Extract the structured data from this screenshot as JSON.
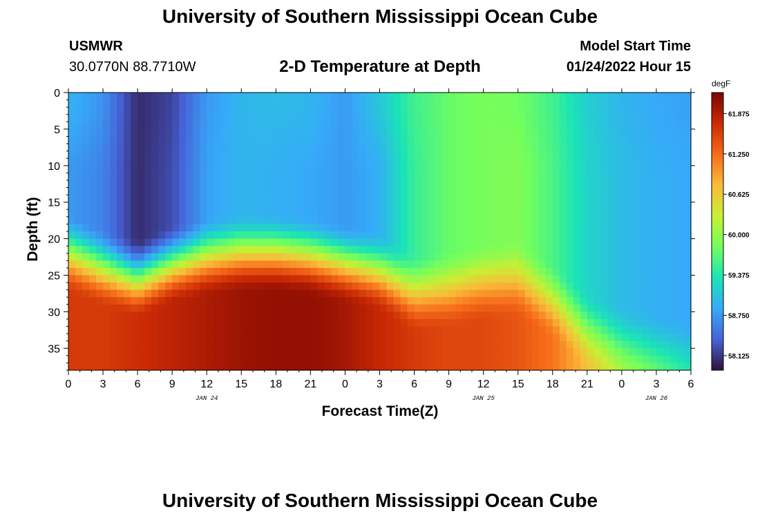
{
  "page": {
    "title": "University of Southern Mississippi Ocean Cube",
    "footer_title": "University of Southern Mississippi Ocean Cube",
    "station": "USMWR",
    "location": "30.0770N  88.7710W",
    "subtitle": "2-D Temperature at Depth",
    "model_start_label": "Model Start Time",
    "model_start_value": "01/24/2022 Hour 15"
  },
  "chart_data": {
    "type": "heatmap",
    "title": "2-D Temperature at Depth",
    "xlabel": "Forecast Time(Z)",
    "ylabel": "Depth (ft)",
    "colorbar_unit": "degF",
    "x_range_hours": [
      0,
      54
    ],
    "y_range_ft": [
      0,
      38
    ],
    "x_ticks": [
      "0",
      "3",
      "6",
      "9",
      "12",
      "15",
      "18",
      "21",
      "0",
      "3",
      "6",
      "9",
      "12",
      "15",
      "18",
      "21",
      "0",
      "3",
      "6"
    ],
    "y_ticks": [
      "0",
      "5",
      "10",
      "15",
      "20",
      "25",
      "30",
      "35"
    ],
    "y_tick_values": [
      0,
      5,
      10,
      15,
      20,
      25,
      30,
      35
    ],
    "date_labels": [
      {
        "label": "JAN 24",
        "hour": 12
      },
      {
        "label": "JAN 25",
        "hour": 36
      },
      {
        "label": "JAN 26",
        "hour": 51
      }
    ],
    "colorbar_ticks": [
      "61.875",
      "61.250",
      "60.625",
      "60.000",
      "59.375",
      "58.750",
      "58.125"
    ],
    "colorbar_tick_values": [
      61.875,
      61.25,
      60.625,
      60.0,
      59.375,
      58.75,
      58.125
    ],
    "colorbar_range": [
      57.9,
      62.2
    ],
    "colors": [
      "#30123b",
      "#4662d7",
      "#36aaf9",
      "#1ae4b6",
      "#72fe5e",
      "#c8ef34",
      "#faba39",
      "#f66b19",
      "#ca2a04",
      "#7a0403"
    ],
    "columns": [
      {
        "hour": 0,
        "surface": 58.95,
        "mid": 58.75,
        "deep": 61.6,
        "thermocline_ft": 23.5
      },
      {
        "hour": 3,
        "surface": 58.7,
        "mid": 58.6,
        "deep": 61.6,
        "thermocline_ft": 25.5
      },
      {
        "hour": 6,
        "surface": 58.05,
        "mid": 58.05,
        "deep": 61.7,
        "thermocline_ft": 27.0
      },
      {
        "hour": 9,
        "surface": 58.2,
        "mid": 58.25,
        "deep": 61.8,
        "thermocline_ft": 25.0
      },
      {
        "hour": 12,
        "surface": 58.75,
        "mid": 58.8,
        "deep": 61.9,
        "thermocline_ft": 24.0
      },
      {
        "hour": 15,
        "surface": 58.95,
        "mid": 58.95,
        "deep": 62.0,
        "thermocline_ft": 23.5
      },
      {
        "hour": 18,
        "surface": 59.0,
        "mid": 58.9,
        "deep": 62.05,
        "thermocline_ft": 23.5
      },
      {
        "hour": 21,
        "surface": 58.95,
        "mid": 58.85,
        "deep": 62.05,
        "thermocline_ft": 24.0
      },
      {
        "hour": 24,
        "surface": 58.75,
        "mid": 58.75,
        "deep": 61.95,
        "thermocline_ft": 25.0
      },
      {
        "hour": 27,
        "surface": 59.1,
        "mid": 58.9,
        "deep": 61.75,
        "thermocline_ft": 26.0
      },
      {
        "hour": 30,
        "surface": 59.55,
        "mid": 59.5,
        "deep": 61.6,
        "thermocline_ft": 29.0
      },
      {
        "hour": 33,
        "surface": 59.75,
        "mid": 59.75,
        "deep": 61.5,
        "thermocline_ft": 28.5
      },
      {
        "hour": 36,
        "surface": 59.85,
        "mid": 59.85,
        "deep": 61.5,
        "thermocline_ft": 27.5
      },
      {
        "hour": 39,
        "surface": 59.8,
        "mid": 59.9,
        "deep": 61.4,
        "thermocline_ft": 27.0
      },
      {
        "hour": 42,
        "surface": 59.55,
        "mid": 59.6,
        "deep": 61.2,
        "thermocline_ft": 30.0
      },
      {
        "hour": 45,
        "surface": 59.15,
        "mid": 59.2,
        "deep": 60.7,
        "thermocline_ft": 34.0
      },
      {
        "hour": 48,
        "surface": 58.95,
        "mid": 59.0,
        "deep": 60.2,
        "thermocline_ft": 36.0
      },
      {
        "hour": 51,
        "surface": 58.85,
        "mid": 58.9,
        "deep": 59.9,
        "thermocline_ft": 37.0
      },
      {
        "hour": 54,
        "surface": 58.8,
        "mid": 58.85,
        "deep": 59.6,
        "thermocline_ft": 38.0
      }
    ]
  }
}
